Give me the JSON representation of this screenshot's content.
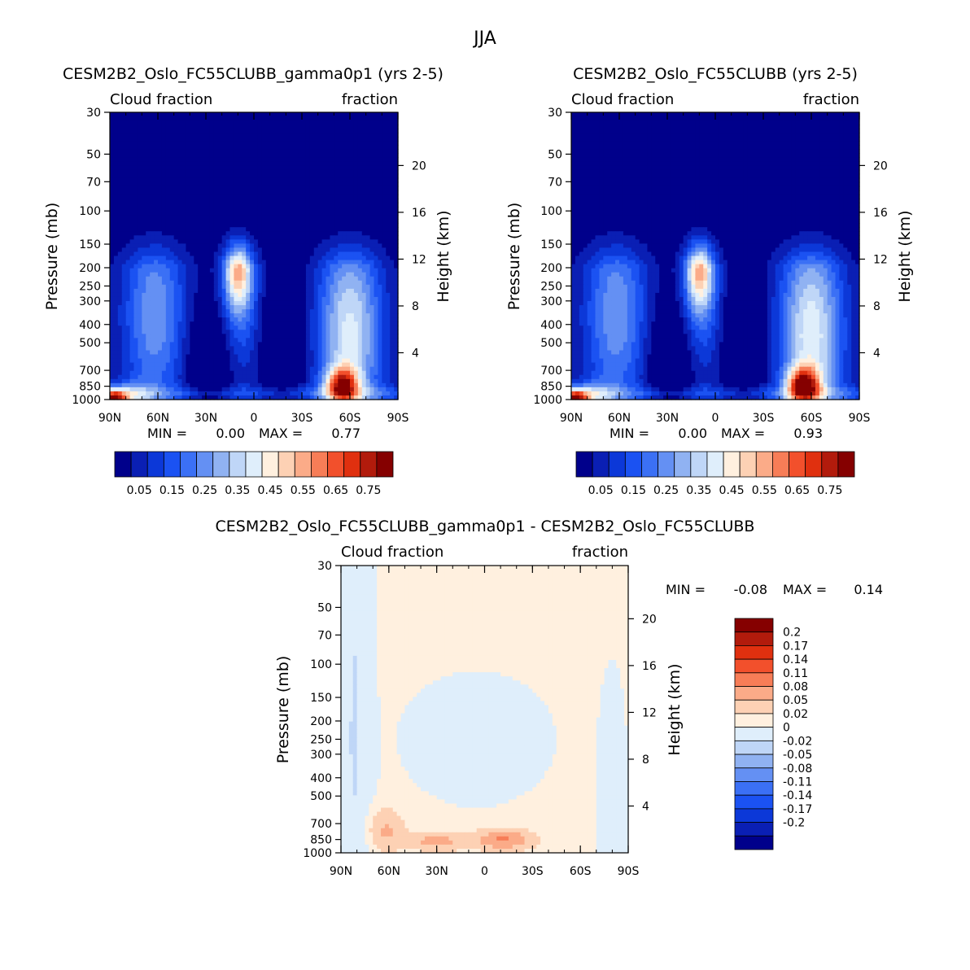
{
  "page_title": "JJA",
  "colors": {
    "seq": [
      "#00008b",
      "#0a1fb4",
      "#0c38d8",
      "#1b52f2",
      "#3b70f5",
      "#6490f3",
      "#90b2f2",
      "#bfd6f7",
      "#dfeefb",
      "#fff0df",
      "#fdd1b4",
      "#fbab88",
      "#f77d57",
      "#f2502c",
      "#e0300f",
      "#b21b0c",
      "#850000"
    ],
    "diff": [
      "#00008b",
      "#0a1fb4",
      "#0c38d8",
      "#1b52f2",
      "#3b70f5",
      "#6490f3",
      "#90b2f2",
      "#bfd6f7",
      "#dfeefb",
      "#fff0df",
      "#fdd1b4",
      "#fbab88",
      "#f77d57",
      "#f2502c",
      "#e0300f",
      "#b21b0c",
      "#850000"
    ]
  },
  "chart_data": [
    {
      "type": "heatmap",
      "title": "CESM2B2_Oslo_FC55CLUBB_gamma0p1 (yrs 2-5)",
      "left_label": "Cloud fraction",
      "right_label": "fraction",
      "ylabel": "Pressure (mb)",
      "y2label": "Height (km)",
      "x_ticks": [
        "90N",
        "60N",
        "30N",
        "0",
        "30S",
        "60S",
        "90S"
      ],
      "y_ticks": [
        "30",
        "50",
        "70",
        "100",
        "150",
        "200",
        "250",
        "300",
        "400",
        "500",
        "700",
        "850",
        "1000"
      ],
      "y2_ticks": [
        "20",
        "16",
        "12",
        "8",
        "4"
      ],
      "min_label": "MIN =",
      "min_value": "0.00",
      "max_label": "MAX =",
      "max_value": "0.77",
      "colorbar_labels": [
        "0.05",
        "0.15",
        "0.25",
        "0.35",
        "0.45",
        "0.55",
        "0.65",
        "0.75"
      ],
      "field": "cloud fraction (zonal mean)"
    },
    {
      "type": "heatmap",
      "title": "CESM2B2_Oslo_FC55CLUBB (yrs 2-5)",
      "left_label": "Cloud fraction",
      "right_label": "fraction",
      "ylabel": "Pressure (mb)",
      "y2label": "Height (km)",
      "x_ticks": [
        "90N",
        "60N",
        "30N",
        "0",
        "30S",
        "60S",
        "90S"
      ],
      "y_ticks": [
        "30",
        "50",
        "70",
        "100",
        "150",
        "200",
        "250",
        "300",
        "400",
        "500",
        "700",
        "850",
        "1000"
      ],
      "y2_ticks": [
        "20",
        "16",
        "12",
        "8",
        "4"
      ],
      "min_label": "MIN =",
      "min_value": "0.00",
      "max_label": "MAX =",
      "max_value": "0.93",
      "colorbar_labels": [
        "0.05",
        "0.15",
        "0.25",
        "0.35",
        "0.45",
        "0.55",
        "0.65",
        "0.75"
      ],
      "field": "cloud fraction (zonal mean)"
    },
    {
      "type": "heatmap",
      "title": "CESM2B2_Oslo_FC55CLUBB_gamma0p1 - CESM2B2_Oslo_FC55CLUBB",
      "left_label": "Cloud fraction",
      "right_label": "fraction",
      "ylabel": "Pressure (mb)",
      "y2label": "Height (km)",
      "x_ticks": [
        "90N",
        "60N",
        "30N",
        "0",
        "30S",
        "60S",
        "90S"
      ],
      "y_ticks": [
        "30",
        "50",
        "70",
        "100",
        "150",
        "200",
        "250",
        "300",
        "400",
        "500",
        "700",
        "850",
        "1000"
      ],
      "y2_ticks": [
        "20",
        "16",
        "12",
        "8",
        "4"
      ],
      "min_label": "MIN =",
      "min_value": "-0.08",
      "max_label": "MAX =",
      "max_value": "0.14",
      "colorbar_labels": [
        "0.2",
        "0.17",
        "0.14",
        "0.11",
        "0.08",
        "0.05",
        "0.02",
        "0",
        "-0.02",
        "-0.05",
        "-0.08",
        "-0.11",
        "-0.14",
        "-0.17",
        "-0.2"
      ],
      "field": "cloud fraction difference"
    }
  ]
}
